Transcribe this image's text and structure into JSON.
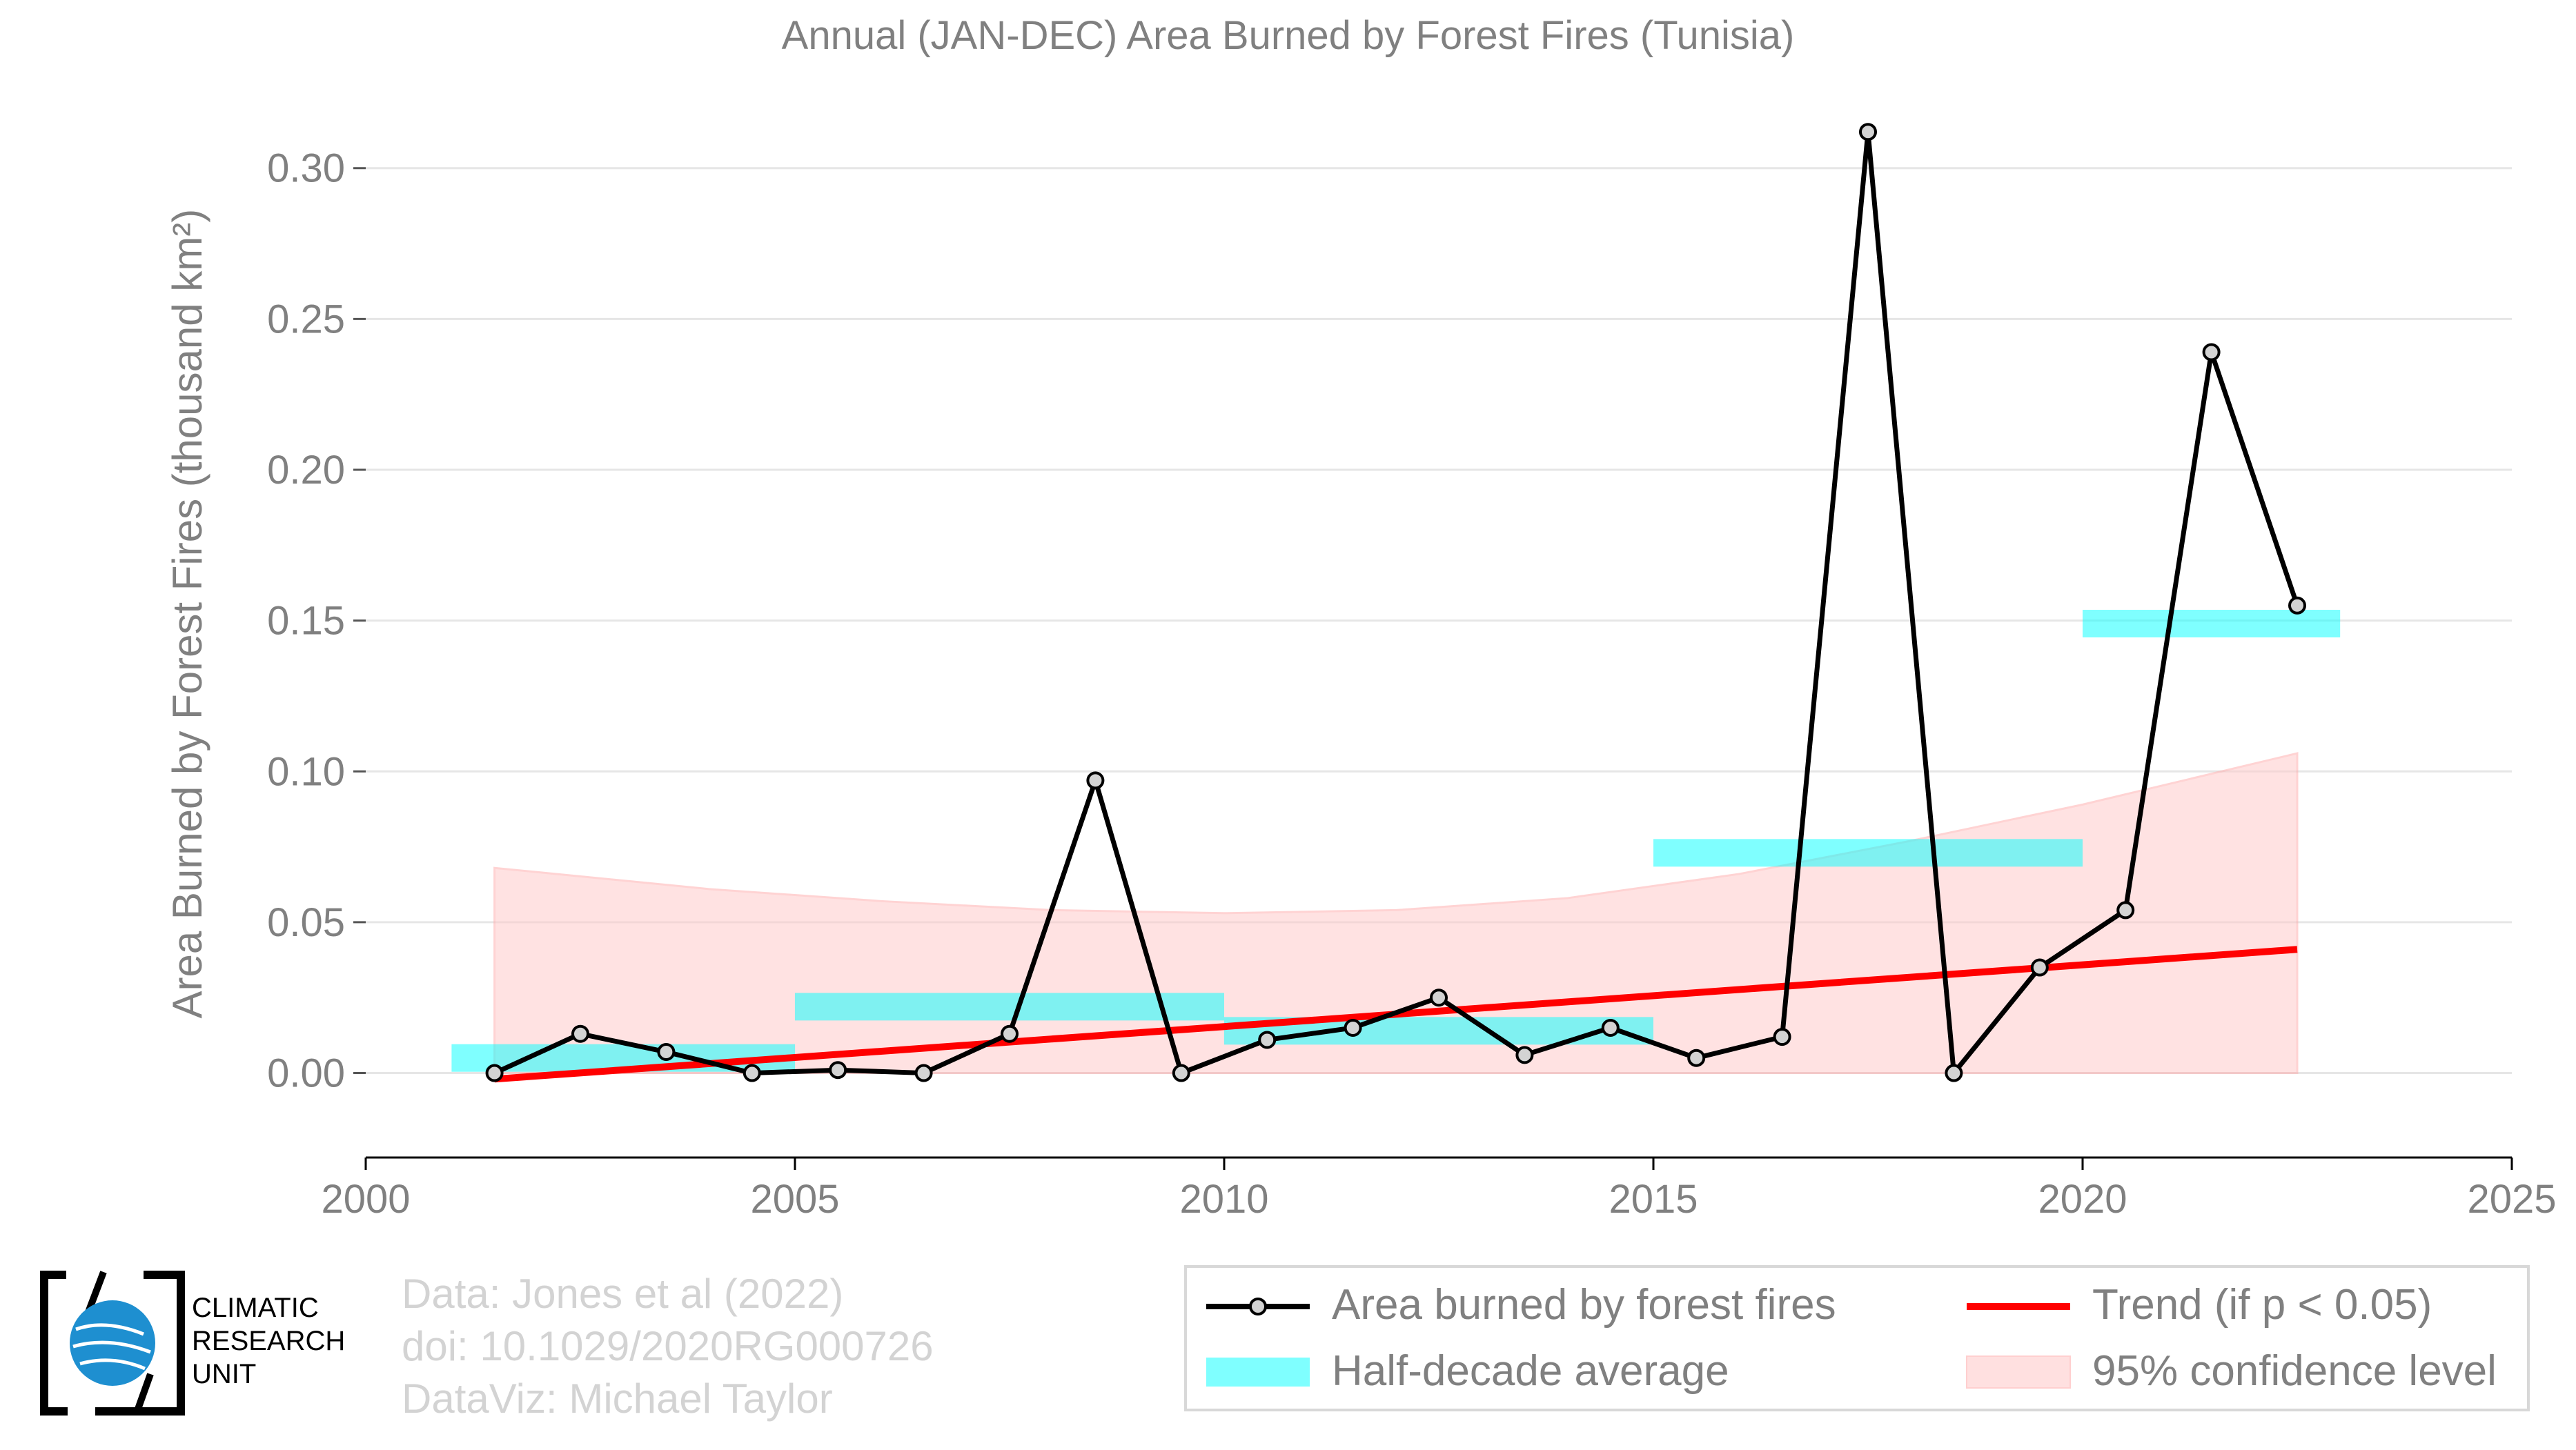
{
  "title": "Annual (JAN-DEC) Area Burned by Forest Fires (Tunisia)",
  "colors": {
    "line": "#000000",
    "marker_fill": "#d3d3d3",
    "trend": "#ff0000",
    "half_decade": "#00ffff",
    "confidence": "#ffcccc",
    "text": "#808080",
    "grid": "#e6e6e6"
  },
  "chart_data": {
    "type": "line",
    "title": "Annual (JAN-DEC) Area Burned by Forest Fires (Tunisia)",
    "xlabel": "",
    "ylabel": "Area Burned by Forest Fires (thousand km²)",
    "xlim": [
      2000,
      2025
    ],
    "ylim": [
      -0.028,
      0.318
    ],
    "xticks": [
      2000,
      2005,
      2010,
      2015,
      2020,
      2025
    ],
    "yticks": [
      0.0,
      0.05,
      0.1,
      0.15,
      0.2,
      0.25,
      0.3
    ],
    "ytick_labels": [
      "0.00",
      "0.05",
      "0.10",
      "0.15",
      "0.20",
      "0.25",
      "0.30"
    ],
    "grid": "horizontal",
    "legend_position": "bottom-right",
    "series": [
      {
        "name": "Area burned by forest fires",
        "type": "line",
        "x": [
          2001.5,
          2002.5,
          2003.5,
          2004.5,
          2005.5,
          2006.5,
          2007.5,
          2008.5,
          2009.5,
          2010.5,
          2011.5,
          2012.5,
          2013.5,
          2014.5,
          2015.5,
          2016.5,
          2017.5,
          2018.5,
          2019.5,
          2020.5,
          2021.5,
          2022.5
        ],
        "y": [
          0.0,
          0.013,
          0.007,
          0.0,
          0.001,
          0.0,
          0.013,
          0.097,
          0.0,
          0.011,
          0.015,
          0.025,
          0.006,
          0.015,
          0.005,
          0.012,
          0.312,
          0.0,
          0.035,
          0.054,
          0.239,
          0.155
        ]
      },
      {
        "name": "Half-decade average",
        "type": "segments",
        "segments": [
          {
            "x0": 2001,
            "x1": 2005,
            "y": 0.005
          },
          {
            "x0": 2005,
            "x1": 2010,
            "y": 0.022
          },
          {
            "x0": 2010,
            "x1": 2015,
            "y": 0.014
          },
          {
            "x0": 2015,
            "x1": 2020,
            "y": 0.073
          },
          {
            "x0": 2020,
            "x1": 2023,
            "y": 0.149
          }
        ]
      },
      {
        "name": "Trend (if p < 0.05)",
        "type": "line",
        "x": [
          2001.5,
          2022.5
        ],
        "y": [
          -0.002,
          0.041
        ]
      },
      {
        "name": "95% confidence level",
        "type": "area",
        "x": [
          2001.5,
          2004,
          2006,
          2008,
          2010,
          2012,
          2014,
          2016,
          2018,
          2020,
          2022.5
        ],
        "y_upper": [
          0.068,
          0.061,
          0.057,
          0.054,
          0.053,
          0.054,
          0.058,
          0.066,
          0.077,
          0.089,
          0.106
        ],
        "y_lower": [
          0.0,
          0.0,
          0.0,
          0.0,
          0.0,
          0.0,
          0.0,
          0.0,
          0.0,
          0.0,
          0.0
        ]
      }
    ]
  },
  "logo_text": [
    "CLIMATIC",
    "RESEARCH",
    "UNIT"
  ],
  "credits": [
    "Data: Jones et al (2022)",
    "doi: 10.1029/2020RG000726",
    "DataViz: Michael Taylor"
  ],
  "legend": {
    "line": "Area burned by forest fires",
    "trend": "Trend (if p < 0.05)",
    "half_decade": "Half-decade average",
    "confidence": "95% confidence level"
  }
}
